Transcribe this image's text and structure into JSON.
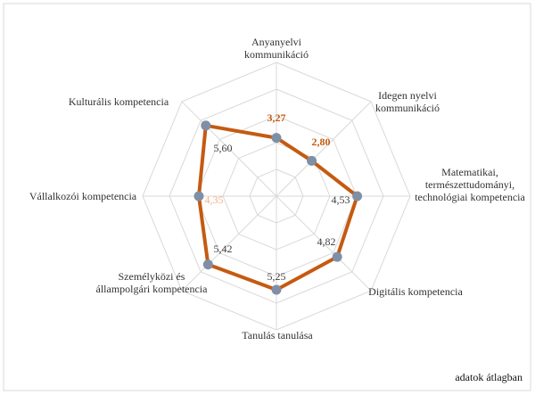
{
  "chart_data": {
    "type": "radar",
    "categories": [
      "Anyanyelvi kommunikáció",
      "Idegen nyelvi kommunikáció",
      "Matematikai, természettudományi, technológiai kompetencia",
      "Digitális kompetencia",
      "Tanulás tanulása",
      "Személyközi és állampolgári kompetencia",
      "Vállalkozói kompetencia",
      "Kulturális kompetencia"
    ],
    "values": [
      3.27,
      2.8,
      4.53,
      4.82,
      5.25,
      5.42,
      4.35,
      5.6
    ],
    "value_labels": [
      "3,27",
      "2,80",
      "4,53",
      "4,82",
      "5,25",
      "5,42",
      "4,35",
      "5,60"
    ],
    "value_label_colors": [
      "#c55a11",
      "#c55a11",
      "#404040",
      "#404040",
      "#404040",
      "#404040",
      "#f4b183",
      "#404040"
    ],
    "color": "#c55a11",
    "marker_color": "#7f8fa6",
    "ylim": [
      0,
      7.5
    ],
    "yticks": [
      0,
      1.5,
      3,
      4.5,
      6,
      7.5
    ],
    "grid": true,
    "annotation": "adatok átlagban"
  }
}
